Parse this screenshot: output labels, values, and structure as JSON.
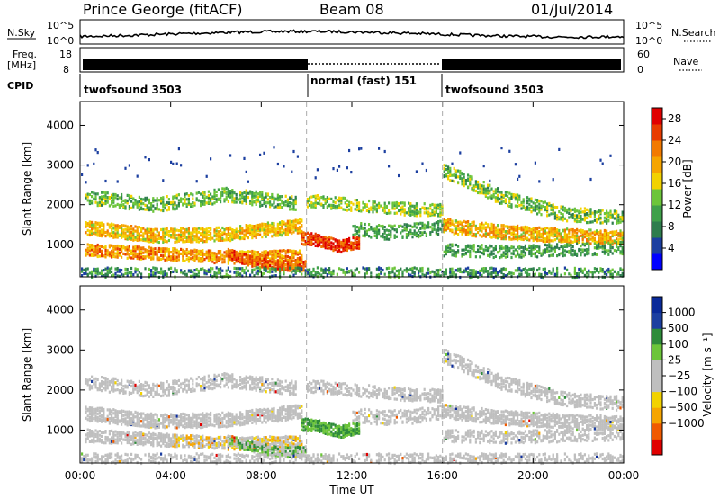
{
  "header": {
    "station": "Prince George (fitACF)",
    "beam": "Beam 08",
    "date": "01/Jul/2014"
  },
  "top_panels": {
    "sky_label": "N.Sky",
    "sky_ticks": [
      "10^5",
      "10^0"
    ],
    "search_label": "N.Search",
    "freq_label_1": "Freq.",
    "freq_label_2": "[MHz]",
    "freq_ticks": [
      "18",
      "8"
    ],
    "nave_label": "Nave",
    "nave_ticks": [
      "60",
      "0"
    ],
    "cpid_label": "CPID",
    "cpid_segments": [
      {
        "label": "twofsound 3503",
        "start_hour": 0,
        "end_hour": 10
      },
      {
        "label": "normal (fast) 151",
        "start_hour": 10,
        "end_hour": 16
      },
      {
        "label": "twofsound 3503",
        "start_hour": 16,
        "end_hour": 24
      }
    ]
  },
  "colors": {
    "power_scale": [
      "#0000ff",
      "#1c3fa0",
      "#2e7d4d",
      "#3fa04a",
      "#6cc53a",
      "#f2d200",
      "#f6a500",
      "#f27a00",
      "#e83c00",
      "#e00000"
    ],
    "velocity_scale": [
      "#e00000",
      "#f05a00",
      "#f6a500",
      "#f2d200",
      "#bfbfbf",
      "#bfbfbf",
      "#6cc53a",
      "#2e8b3a",
      "#1c3fa0",
      "#0a2a99"
    ]
  },
  "chart_data": [
    {
      "type": "heatmap",
      "panel": "power",
      "ylabel": "Slant Range [km]",
      "ylim": [
        180,
        4600
      ],
      "yticks": [
        "1000",
        "2000",
        "3000",
        "4000"
      ],
      "xlim": [
        0,
        24
      ],
      "colorbar_label": "Power [dB]",
      "colorbar_ticks": [
        "4",
        "8",
        "12",
        "16",
        "20",
        "24",
        "28"
      ],
      "colorbar_range": [
        0,
        30
      ]
    },
    {
      "type": "heatmap",
      "panel": "velocity",
      "ylabel": "Slant Range [km]",
      "ylim": [
        180,
        4600
      ],
      "yticks": [
        "1000",
        "2000",
        "3000",
        "4000"
      ],
      "xlim": [
        0,
        24
      ],
      "xlabel": "Time UT",
      "xticks": [
        "00:00",
        "04:00",
        "08:00",
        "12:00",
        "16:00",
        "20:00",
        "00:00"
      ],
      "colorbar_label": "Velocity [m s⁻¹]",
      "colorbar_ticks": [
        "1000",
        "500",
        "100",
        "25",
        "−25",
        "−100",
        "−500",
        "−1000"
      ]
    }
  ]
}
